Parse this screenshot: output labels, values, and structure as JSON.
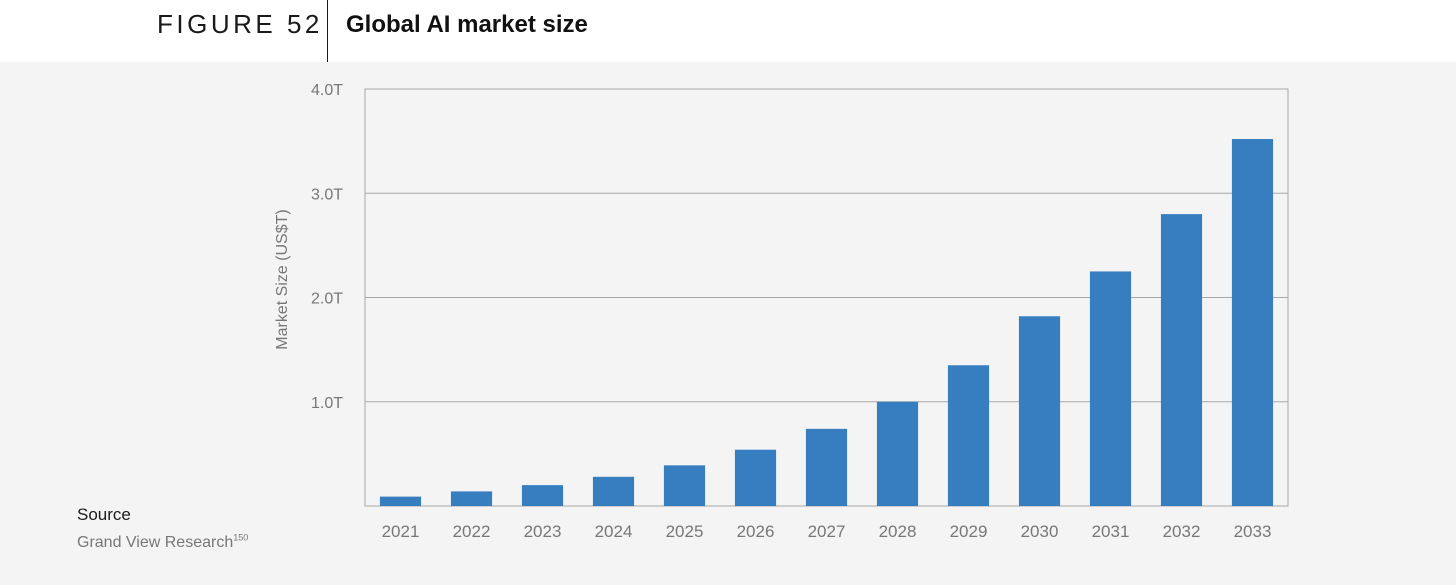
{
  "figure": {
    "label": "FIGURE 52",
    "title": "Global AI market size"
  },
  "source": {
    "heading": "Source",
    "text": "Grand View Research",
    "superscript": "150"
  },
  "colors": {
    "bar": "#377ec1",
    "grid": "#a8a8a8",
    "panel_background": "#f4f4f4",
    "axis_text": "#777777"
  },
  "chart_data": {
    "type": "bar",
    "title": "Global AI market size",
    "ylabel": "Market Size (US$T)",
    "xlabel": "",
    "ylim": [
      0,
      4.0
    ],
    "y_ticks": [
      {
        "value": 1.0,
        "label": "1.0T"
      },
      {
        "value": 2.0,
        "label": "2.0T"
      },
      {
        "value": 3.0,
        "label": "3.0T"
      },
      {
        "value": 4.0,
        "label": "4.0T"
      }
    ],
    "grid": true,
    "categories": [
      "2021",
      "2022",
      "2023",
      "2024",
      "2025",
      "2026",
      "2027",
      "2028",
      "2029",
      "2030",
      "2031",
      "2032",
      "2033"
    ],
    "values": [
      0.09,
      0.14,
      0.2,
      0.28,
      0.39,
      0.54,
      0.74,
      1.0,
      1.35,
      1.82,
      2.25,
      2.8,
      3.52
    ]
  }
}
